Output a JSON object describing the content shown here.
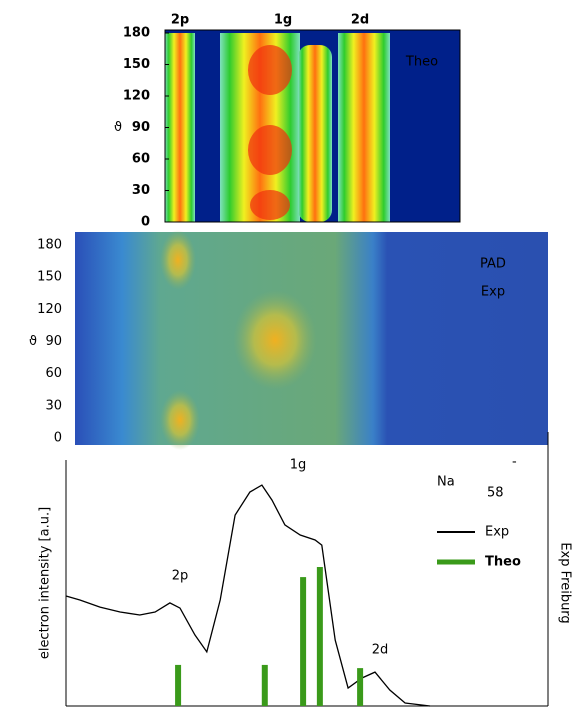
{
  "chart_data": [
    {
      "type": "heatmap",
      "title": "Theo",
      "column_labels": [
        "2p",
        "1g",
        "2d"
      ],
      "ylabel": "ϑ",
      "ylim": [
        0,
        180
      ],
      "yticks": [
        0,
        30,
        60,
        90,
        120,
        150,
        180
      ]
    },
    {
      "type": "heatmap",
      "title_lines": [
        "PAD",
        "Exp"
      ],
      "ylabel": "ϑ",
      "ylim": [
        0,
        180
      ],
      "yticks": [
        0,
        30,
        60,
        90,
        120,
        150,
        180
      ]
    },
    {
      "type": "line",
      "title": "Na",
      "title_subscript": "58",
      "title_superscript": "-",
      "ylabel": "electron intensity [a.u.]",
      "side_label": "Exp Freiburg",
      "peak_labels": [
        "2p",
        "1g",
        "2d"
      ],
      "xlim": [
        0,
        100
      ],
      "ylim": [
        0,
        100
      ],
      "series": [
        {
          "name": "Exp",
          "color": "#000000",
          "x": [
            0,
            2.9,
            7.1,
            11.3,
            15.4,
            18.6,
            21.7,
            23.8,
            26.9,
            29.4,
            32.2,
            35.3,
            38.4,
            40.9,
            43,
            45.7,
            48.9,
            52,
            53.4,
            56.2,
            58.9,
            61.8,
            64.5,
            67.6,
            70.8,
            76
          ],
          "values": [
            44.7,
            43.1,
            40.2,
            38.2,
            37,
            38.2,
            41.9,
            39.8,
            28.9,
            22,
            43.1,
            77.6,
            87,
            89.8,
            83.7,
            73.6,
            69.5,
            67.5,
            65.4,
            26.8,
            7.3,
            11.4,
            13.8,
            6.5,
            1.2,
            0
          ]
        },
        {
          "name": "Theo",
          "color": "#3a9a1a",
          "type": "bar",
          "x": [
            23.4,
            41.5,
            49.5,
            53,
            61.4
          ],
          "values": [
            16.7,
            16.7,
            52.4,
            56.5,
            15.4
          ]
        }
      ]
    }
  ]
}
